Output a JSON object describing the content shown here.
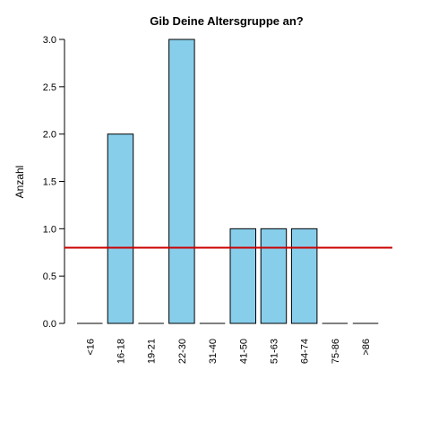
{
  "chart_data": {
    "type": "bar",
    "title": "Gib Deine Altersgruppe an?",
    "xlabel": "",
    "ylabel": "Anzahl",
    "categories": [
      "<16",
      "16-18",
      "19-21",
      "22-30",
      "31-40",
      "41-50",
      "51-63",
      "64-74",
      "75-86",
      ">86"
    ],
    "values": [
      0,
      2,
      0,
      3,
      0,
      1,
      1,
      1,
      0,
      0
    ],
    "ylim": [
      0,
      3
    ],
    "yticks": [
      "0.0",
      "0.5",
      "1.0",
      "1.5",
      "2.0",
      "2.5",
      "3.0"
    ],
    "reference_line": {
      "y": 0.8,
      "color": "#cc0000"
    },
    "bar_color": "#87ceeb",
    "bar_border_color": "#000000",
    "grid": false,
    "legend": "none"
  }
}
